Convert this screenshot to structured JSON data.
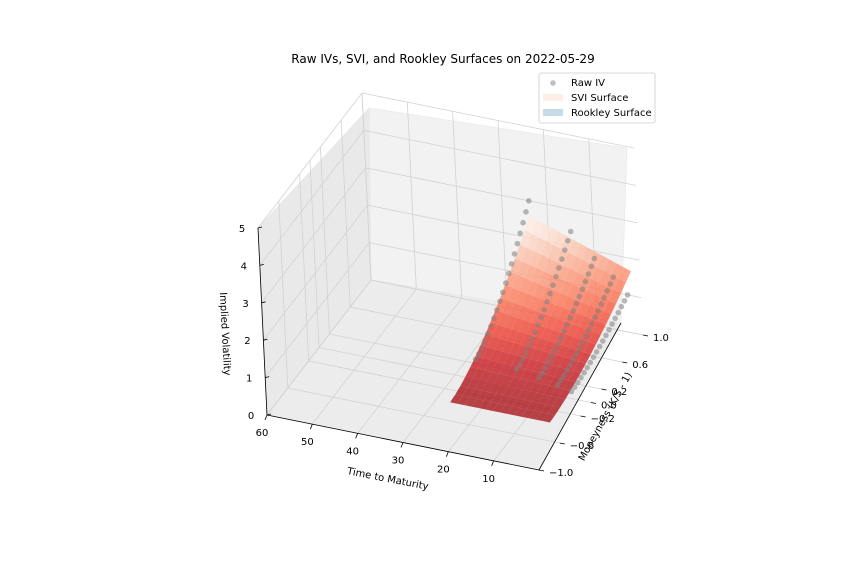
{
  "chart_data": {
    "type": "surface3d",
    "title": "Raw IVs, SVI, and Rookley Surfaces on 2022-05-29",
    "axes": {
      "x": {
        "label": "Time to Maturity",
        "range": [
          0,
          60
        ],
        "ticks": [
          "60",
          "50",
          "40",
          "30",
          "20",
          "10"
        ]
      },
      "y": {
        "label": "Moneyness (K/S - 1)",
        "range": [
          -1.0,
          1.0
        ],
        "ticks": [
          "−1.0",
          "−0.6",
          "−0.2",
          "0.0",
          "0.2",
          "0.6",
          "1.0"
        ]
      },
      "z": {
        "label": "Implied Volatility",
        "range": [
          0,
          5
        ],
        "ticks": [
          "0",
          "1",
          "2",
          "3",
          "4",
          "5"
        ]
      }
    },
    "grid": true,
    "legend": {
      "placement": "top-right",
      "entries": [
        {
          "label": "Raw IV",
          "kind": "marker",
          "color": "#808080"
        },
        {
          "label": "SVI Surface",
          "kind": "patch",
          "color": "#fde3d6"
        },
        {
          "label": "Rookley Surface",
          "kind": "patch",
          "color": "#c6dbe8"
        }
      ]
    },
    "series": [
      {
        "name": "Raw IV",
        "kind": "scatter",
        "color": "#808080",
        "maturities": [
          3,
          6,
          10,
          15,
          24
        ],
        "moneyness_range": [
          -0.1,
          1.0
        ],
        "iv_at_min_moneyness": [
          0.4,
          0.5,
          0.6,
          0.7,
          0.75
        ],
        "iv_at_max_moneyness": [
          1.0,
          1.4,
          1.8,
          2.4,
          3.0
        ]
      },
      {
        "name": "SVI Surface",
        "kind": "surface",
        "colormap": "Reds",
        "maturity_range": [
          2,
          24
        ],
        "moneyness_range": [
          -0.6,
          1.0
        ],
        "iv_range": [
          0.5,
          2.6
        ]
      },
      {
        "name": "Rookley Surface",
        "kind": "surface",
        "colormap": "Blues",
        "iv_range": [
          0.5,
          0.6
        ]
      }
    ]
  }
}
